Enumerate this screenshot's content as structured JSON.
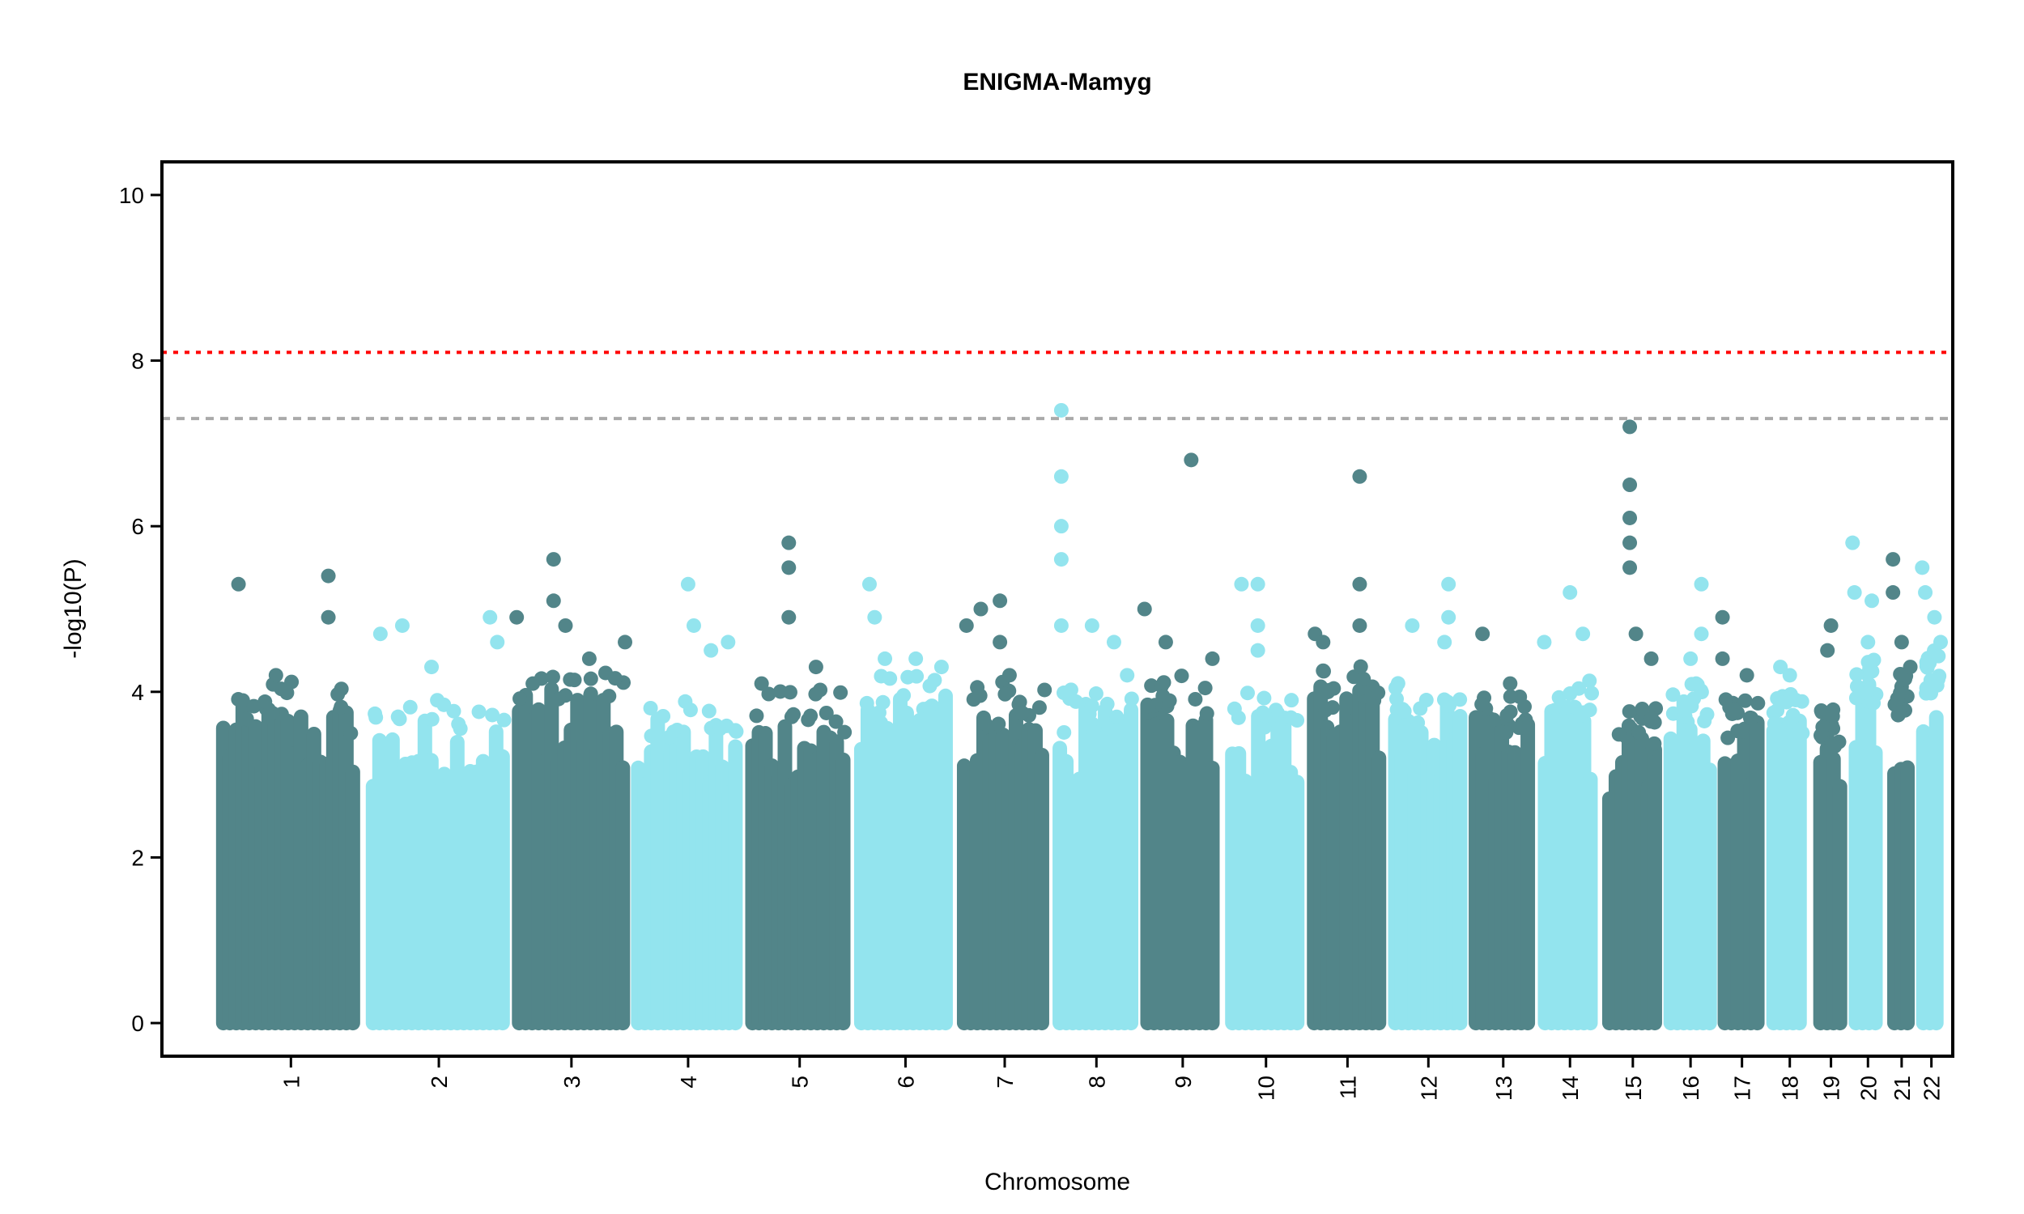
{
  "chart_data": {
    "type": "scatter",
    "subtype": "manhattan",
    "title": "ENIGMA-Mamyg",
    "xlabel": "Chromosome",
    "ylabel": "-log10(P)",
    "ylim": [
      -0.4,
      10.4
    ],
    "yticks": [
      "0",
      "2",
      "4",
      "6",
      "8",
      "10"
    ],
    "legend": "none",
    "grid": false,
    "colors": {
      "dark": "#528589",
      "light": "#93e4ee"
    },
    "thresholds": [
      {
        "name": "bonferroni",
        "value": 8.1,
        "color": "#ff0000",
        "style": "dotted"
      },
      {
        "name": "genome-wide",
        "value": 7.3,
        "color": "#aaaaaa",
        "style": "dashed"
      }
    ],
    "chromosomes": [
      {
        "label": "1",
        "start": 0,
        "end": 249,
        "color": "dark",
        "base_max": 3.9,
        "peaks": [
          [
            0.15,
            5.3
          ],
          [
            0.75,
            5.4
          ],
          [
            0.75,
            4.9
          ],
          [
            0.4,
            4.2
          ],
          [
            0.9,
            3.5
          ]
        ]
      },
      {
        "label": "2",
        "start": 249,
        "end": 492,
        "color": "light",
        "base_max": 3.7,
        "peaks": [
          [
            0.1,
            4.7
          ],
          [
            0.25,
            4.8
          ],
          [
            0.45,
            4.3
          ],
          [
            0.85,
            4.9
          ],
          [
            0.9,
            4.6
          ]
        ]
      },
      {
        "label": "3",
        "start": 492,
        "end": 690,
        "color": "dark",
        "base_max": 4.1,
        "peaks": [
          [
            0.04,
            4.9
          ],
          [
            0.35,
            5.6
          ],
          [
            0.35,
            5.1
          ],
          [
            0.45,
            4.8
          ],
          [
            0.65,
            4.4
          ],
          [
            0.95,
            4.6
          ]
        ]
      },
      {
        "label": "4",
        "start": 690,
        "end": 880,
        "color": "light",
        "base_max": 3.7,
        "peaks": [
          [
            0.5,
            5.3
          ],
          [
            0.55,
            4.8
          ],
          [
            0.7,
            4.5
          ],
          [
            0.85,
            4.6
          ]
        ]
      },
      {
        "label": "5",
        "start": 880,
        "end": 1061,
        "color": "dark",
        "base_max": 3.8,
        "peaks": [
          [
            0.15,
            4.1
          ],
          [
            0.4,
            5.8
          ],
          [
            0.4,
            5.5
          ],
          [
            0.4,
            4.9
          ],
          [
            0.65,
            4.3
          ]
        ]
      },
      {
        "label": "6",
        "start": 1061,
        "end": 1232,
        "color": "light",
        "base_max": 4.0,
        "peaks": [
          [
            0.15,
            5.3
          ],
          [
            0.2,
            4.9
          ],
          [
            0.3,
            4.4
          ],
          [
            0.6,
            4.4
          ],
          [
            0.85,
            4.3
          ]
        ]
      },
      {
        "label": "7",
        "start": 1232,
        "end": 1391,
        "color": "dark",
        "base_max": 3.9,
        "peaks": [
          [
            0.1,
            4.8
          ],
          [
            0.25,
            5.0
          ],
          [
            0.45,
            5.1
          ],
          [
            0.45,
            4.6
          ],
          [
            0.55,
            4.2
          ]
        ]
      },
      {
        "label": "8",
        "start": 1391,
        "end": 1537,
        "color": "light",
        "base_max": 3.8,
        "peaks": [
          [
            0.1,
            7.4
          ],
          [
            0.1,
            6.6
          ],
          [
            0.1,
            6.0
          ],
          [
            0.1,
            5.6
          ],
          [
            0.1,
            4.8
          ],
          [
            0.45,
            4.8
          ],
          [
            0.7,
            4.6
          ],
          [
            0.85,
            4.2
          ]
        ]
      },
      {
        "label": "9",
        "start": 1537,
        "end": 1678,
        "color": "dark",
        "base_max": 4.0,
        "peaks": [
          [
            0.05,
            5.0
          ],
          [
            0.3,
            4.6
          ],
          [
            0.6,
            6.8
          ],
          [
            0.85,
            4.4
          ]
        ]
      },
      {
        "label": "10",
        "start": 1678,
        "end": 1814,
        "color": "light",
        "base_max": 3.8,
        "peaks": [
          [
            0.2,
            5.3
          ],
          [
            0.4,
            5.3
          ],
          [
            0.4,
            4.8
          ],
          [
            0.4,
            4.5
          ]
        ]
      },
      {
        "label": "11",
        "start": 1814,
        "end": 1949,
        "color": "dark",
        "base_max": 4.1,
        "peaks": [
          [
            0.1,
            4.7
          ],
          [
            0.2,
            4.6
          ],
          [
            0.65,
            6.6
          ],
          [
            0.65,
            5.3
          ],
          [
            0.65,
            4.8
          ]
        ]
      },
      {
        "label": "12",
        "start": 1949,
        "end": 2083,
        "color": "light",
        "base_max": 3.9,
        "peaks": [
          [
            0.3,
            4.8
          ],
          [
            0.75,
            5.3
          ],
          [
            0.75,
            4.9
          ],
          [
            0.7,
            4.6
          ]
        ]
      },
      {
        "label": "13",
        "start": 2083,
        "end": 2198,
        "color": "dark",
        "base_max": 3.8,
        "peaks": [
          [
            0.2,
            4.7
          ],
          [
            0.6,
            4.1
          ]
        ]
      },
      {
        "label": "14",
        "start": 2198,
        "end": 2305,
        "color": "light",
        "base_max": 3.9,
        "peaks": [
          [
            0.1,
            4.6
          ],
          [
            0.5,
            5.2
          ],
          [
            0.7,
            4.7
          ]
        ]
      },
      {
        "label": "15",
        "start": 2305,
        "end": 2407,
        "color": "dark",
        "base_max": 3.6,
        "peaks": [
          [
            0.45,
            7.2
          ],
          [
            0.45,
            6.5
          ],
          [
            0.45,
            6.1
          ],
          [
            0.45,
            5.8
          ],
          [
            0.45,
            5.5
          ],
          [
            0.55,
            4.7
          ],
          [
            0.8,
            4.4
          ]
        ]
      },
      {
        "label": "16",
        "start": 2407,
        "end": 2497,
        "color": "light",
        "base_max": 3.9,
        "peaks": [
          [
            0.5,
            4.4
          ],
          [
            0.7,
            5.3
          ],
          [
            0.7,
            4.7
          ]
        ]
      },
      {
        "label": "17",
        "start": 2497,
        "end": 2578,
        "color": "dark",
        "base_max": 3.7,
        "peaks": [
          [
            0.1,
            4.9
          ],
          [
            0.1,
            4.4
          ],
          [
            0.6,
            4.2
          ]
        ]
      },
      {
        "label": "18",
        "start": 2578,
        "end": 2656,
        "color": "light",
        "base_max": 3.8,
        "peaks": [
          [
            0.3,
            4.3
          ],
          [
            0.5,
            4.2
          ]
        ]
      },
      {
        "label": "19",
        "start": 2656,
        "end": 2715,
        "color": "dark",
        "base_max": 3.6,
        "peaks": [
          [
            0.5,
            4.8
          ],
          [
            0.4,
            4.5
          ]
        ]
      },
      {
        "label": "20",
        "start": 2715,
        "end": 2779,
        "color": "light",
        "base_max": 4.2,
        "peaks": [
          [
            0.1,
            5.8
          ],
          [
            0.15,
            5.2
          ],
          [
            0.6,
            5.1
          ],
          [
            0.5,
            4.6
          ]
        ]
      },
      {
        "label": "21",
        "start": 2779,
        "end": 2827,
        "color": "dark",
        "base_max": 4.0,
        "peaks": [
          [
            0.2,
            5.6
          ],
          [
            0.2,
            5.2
          ],
          [
            0.5,
            4.6
          ],
          [
            0.8,
            4.3
          ]
        ]
      },
      {
        "label": "22",
        "start": 2827,
        "end": 2878,
        "color": "light",
        "base_max": 4.3,
        "peaks": [
          [
            0.2,
            5.5
          ],
          [
            0.3,
            5.2
          ],
          [
            0.6,
            4.9
          ],
          [
            0.8,
            4.6
          ]
        ]
      }
    ]
  }
}
